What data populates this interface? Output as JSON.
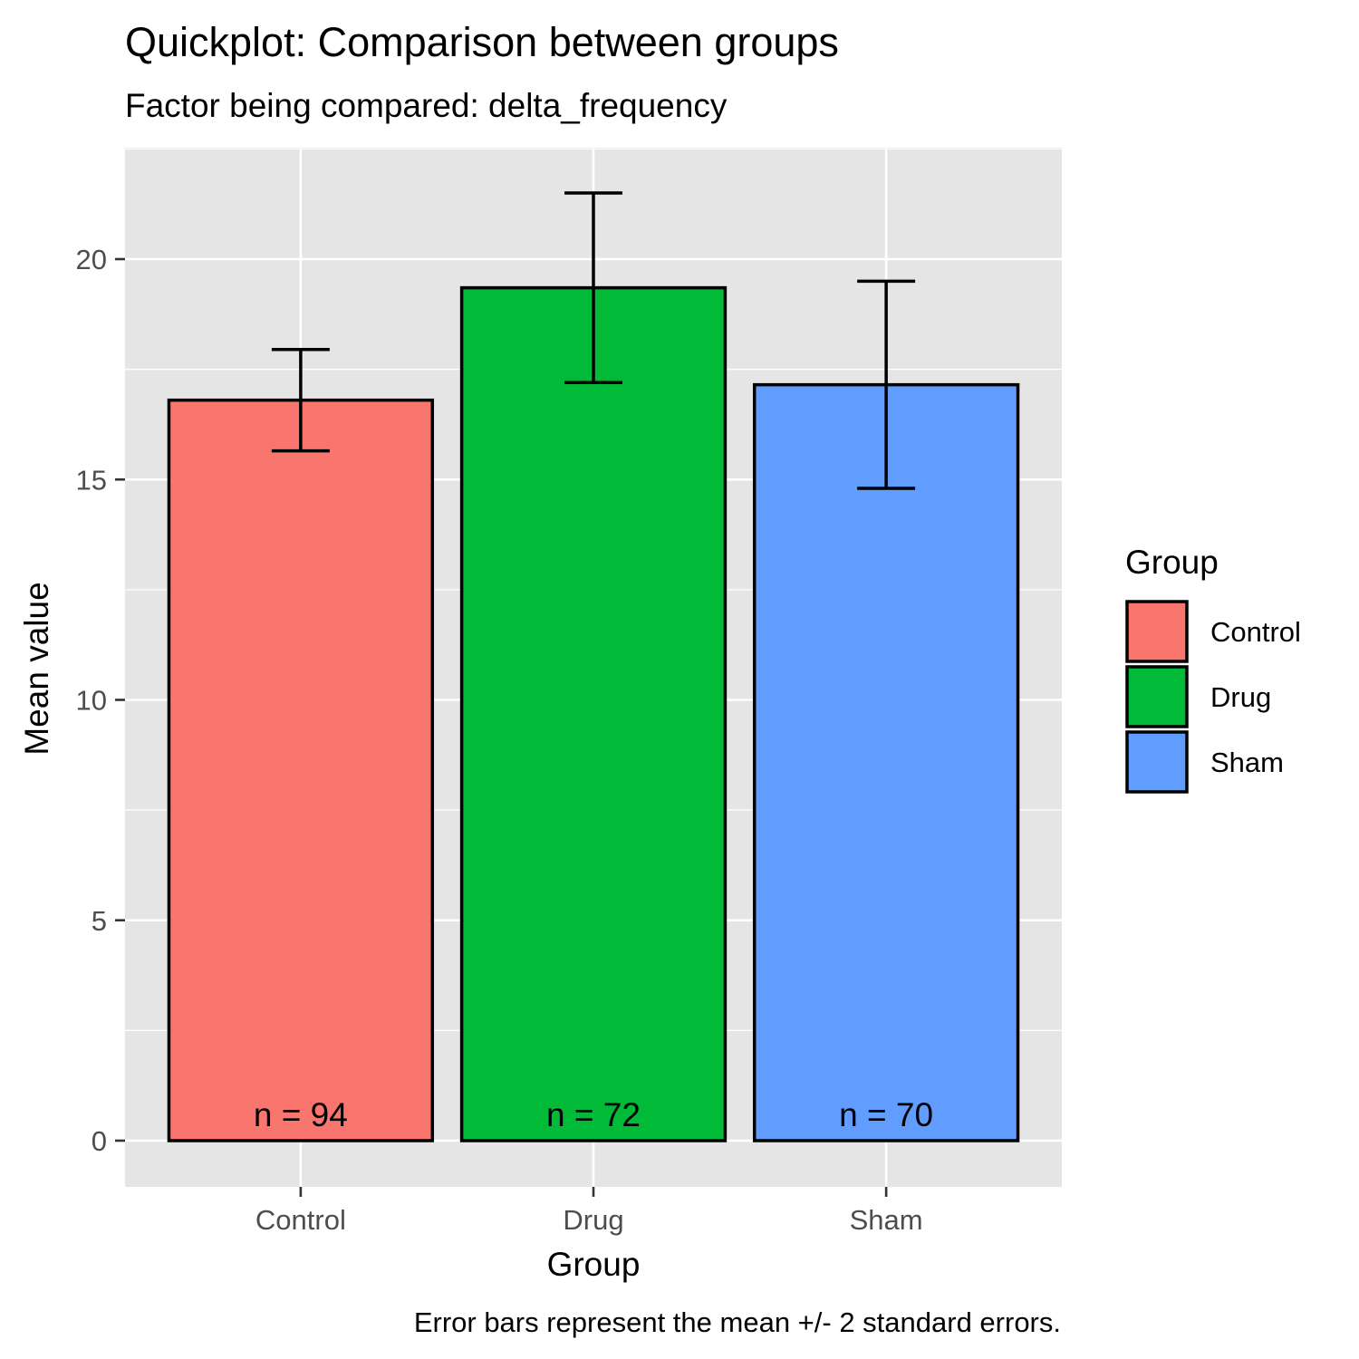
{
  "chart_data": {
    "type": "bar",
    "title": "Quickplot: Comparison between groups",
    "subtitle": "Factor being compared: delta_frequency",
    "xlabel": "Group",
    "ylabel": "Mean value",
    "caption": "Error bars represent the mean +/- 2 standard errors.",
    "categories": [
      "Control",
      "Drug",
      "Sham"
    ],
    "values": [
      16.8,
      19.35,
      17.15
    ],
    "error_low": [
      15.65,
      17.2,
      14.8
    ],
    "error_high": [
      17.95,
      21.5,
      19.5
    ],
    "n_labels": [
      "n = 94",
      "n = 72",
      "n = 70"
    ],
    "colors": [
      "#F8766D",
      "#00BA38",
      "#619CFF"
    ],
    "ylim": [
      -1.1,
      22.6
    ],
    "yticks": [
      0,
      5,
      10,
      15,
      20
    ],
    "ytick_labels": [
      "0",
      "5",
      "10",
      "15",
      "20"
    ],
    "grid": true,
    "panel_background": "#E5E5E5",
    "legend": {
      "title": "Group",
      "position": "right",
      "entries": [
        "Control",
        "Drug",
        "Sham"
      ]
    }
  }
}
